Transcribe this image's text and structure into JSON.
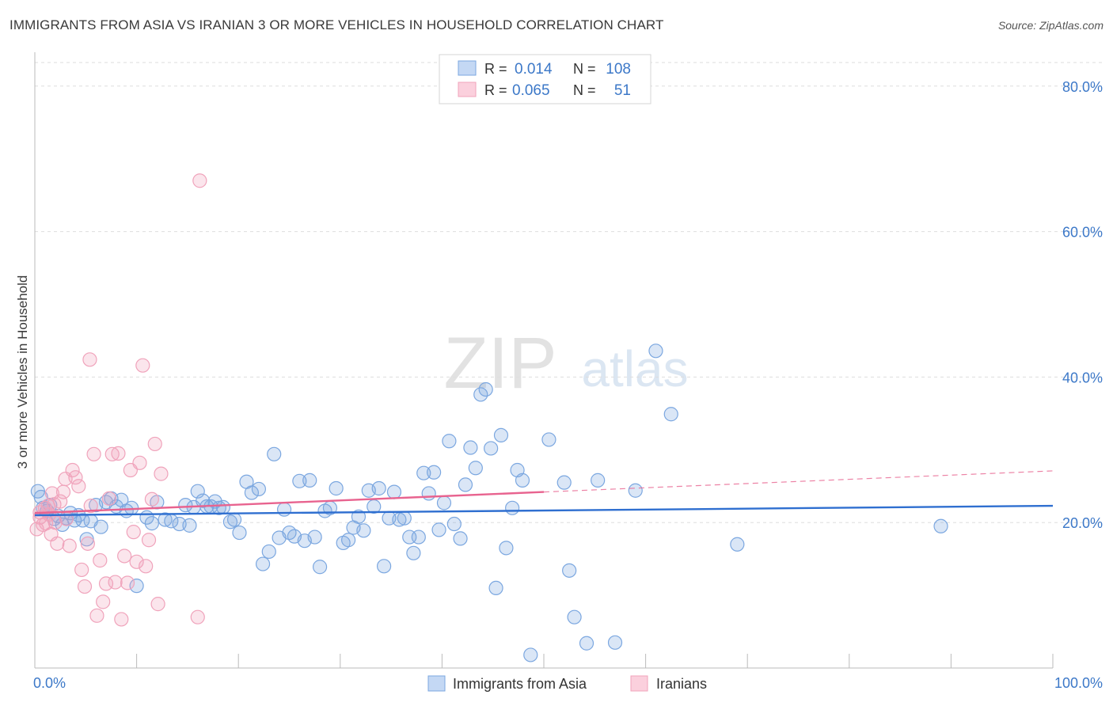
{
  "header": {
    "title": "IMMIGRANTS FROM ASIA VS IRANIAN 3 OR MORE VEHICLES IN HOUSEHOLD CORRELATION CHART",
    "source": "Source: ZipAtlas.com"
  },
  "watermark": {
    "zip": "ZIP",
    "atlas": "atlas"
  },
  "colors": {
    "blue": "#7ba7e0",
    "blue_line": "#2f6fd0",
    "pink": "#f0a3bb",
    "pink_line": "#e8638f",
    "tick_label": "#3c78c8",
    "grid": "#dddddd"
  },
  "legend_top": {
    "rows": [
      {
        "r_label": "R =",
        "r_value": "0.014",
        "n_label": "N =",
        "n_value": "108"
      },
      {
        "r_label": "R =",
        "r_value": "0.065",
        "n_label": "N =",
        "n_value": "51"
      }
    ]
  },
  "legend_bottom": {
    "items": [
      "Immigrants from Asia",
      "Iranians"
    ]
  },
  "chart_data": {
    "type": "scatter",
    "title": "IMMIGRANTS FROM ASIA VS IRANIAN 3 OR MORE VEHICLES IN HOUSEHOLD CORRELATION CHART",
    "xlabel": "",
    "ylabel": "3 or more Vehicles in Household",
    "xlim": [
      0,
      100
    ],
    "ylim": [
      0,
      84
    ],
    "x_tick_labels": [
      "0.0%",
      "100.0%"
    ],
    "y_ticks": [
      20,
      40,
      60,
      80
    ],
    "y_tick_labels": [
      "20.0%",
      "40.0%",
      "60.0%",
      "80.0%"
    ],
    "grid": true,
    "legend_position": "top-center",
    "series": [
      {
        "name": "Immigrants from Asia",
        "color": "#7ba7e0",
        "trend": {
          "x": [
            0,
            100
          ],
          "y": [
            21.0,
            22.3
          ],
          "style": "solid"
        },
        "points": [
          [
            0.3,
            24.3
          ],
          [
            0.6,
            23.5
          ],
          [
            0.8,
            22.0
          ],
          [
            1.2,
            21.6
          ],
          [
            1.5,
            22.4
          ],
          [
            1.9,
            20.5
          ],
          [
            2.3,
            20.9
          ],
          [
            2.7,
            19.7
          ],
          [
            3.1,
            20.6
          ],
          [
            3.5,
            21.3
          ],
          [
            3.9,
            20.3
          ],
          [
            4.3,
            21.0
          ],
          [
            4.7,
            20.3
          ],
          [
            5.1,
            17.7
          ],
          [
            5.5,
            20.2
          ],
          [
            6.0,
            22.4
          ],
          [
            6.5,
            19.4
          ],
          [
            7.0,
            22.8
          ],
          [
            7.5,
            23.3
          ],
          [
            8.0,
            22.2
          ],
          [
            8.5,
            23.1
          ],
          [
            9.0,
            21.6
          ],
          [
            9.5,
            22.0
          ],
          [
            10.0,
            11.3
          ],
          [
            11.0,
            20.7
          ],
          [
            11.5,
            19.9
          ],
          [
            12.0,
            22.8
          ],
          [
            12.8,
            20.4
          ],
          [
            13.4,
            20.2
          ],
          [
            14.2,
            19.8
          ],
          [
            14.8,
            22.4
          ],
          [
            15.2,
            19.6
          ],
          [
            15.6,
            22.1
          ],
          [
            16.0,
            24.3
          ],
          [
            16.5,
            23.0
          ],
          [
            16.9,
            22.2
          ],
          [
            17.3,
            22.2
          ],
          [
            17.7,
            22.9
          ],
          [
            18.1,
            22.0
          ],
          [
            18.5,
            22.1
          ],
          [
            19.2,
            20.1
          ],
          [
            19.6,
            20.4
          ],
          [
            20.1,
            18.6
          ],
          [
            20.8,
            25.6
          ],
          [
            21.3,
            24.1
          ],
          [
            22.0,
            24.6
          ],
          [
            22.4,
            14.3
          ],
          [
            23.0,
            16.0
          ],
          [
            23.5,
            29.4
          ],
          [
            24.0,
            17.9
          ],
          [
            24.5,
            21.8
          ],
          [
            25.0,
            18.6
          ],
          [
            25.5,
            18.1
          ],
          [
            26.0,
            25.7
          ],
          [
            26.5,
            17.5
          ],
          [
            27.0,
            25.8
          ],
          [
            27.5,
            18.0
          ],
          [
            28.0,
            13.9
          ],
          [
            28.5,
            21.6
          ],
          [
            29.0,
            22.0
          ],
          [
            29.6,
            24.7
          ],
          [
            30.3,
            17.2
          ],
          [
            30.8,
            17.6
          ],
          [
            31.3,
            19.3
          ],
          [
            31.8,
            20.8
          ],
          [
            32.3,
            18.9
          ],
          [
            32.8,
            24.4
          ],
          [
            33.3,
            22.2
          ],
          [
            33.8,
            24.7
          ],
          [
            34.3,
            14.0
          ],
          [
            34.8,
            20.6
          ],
          [
            35.3,
            24.2
          ],
          [
            35.8,
            20.4
          ],
          [
            36.3,
            20.6
          ],
          [
            36.8,
            18.0
          ],
          [
            37.2,
            15.8
          ],
          [
            37.7,
            18.0
          ],
          [
            38.2,
            26.8
          ],
          [
            38.7,
            24.0
          ],
          [
            39.2,
            26.9
          ],
          [
            39.7,
            19.0
          ],
          [
            40.2,
            22.7
          ],
          [
            40.7,
            31.2
          ],
          [
            41.2,
            19.8
          ],
          [
            41.8,
            17.8
          ],
          [
            42.3,
            25.2
          ],
          [
            42.8,
            30.3
          ],
          [
            43.3,
            27.5
          ],
          [
            43.8,
            37.6
          ],
          [
            44.3,
            38.3
          ],
          [
            44.8,
            30.2
          ],
          [
            45.3,
            11.0
          ],
          [
            45.8,
            32.0
          ],
          [
            46.3,
            16.5
          ],
          [
            46.9,
            22.0
          ],
          [
            47.4,
            27.2
          ],
          [
            47.9,
            25.8
          ],
          [
            48.7,
            1.8
          ],
          [
            50.5,
            31.4
          ],
          [
            52.0,
            25.5
          ],
          [
            52.5,
            13.4
          ],
          [
            53.0,
            7.0
          ],
          [
            54.2,
            3.4
          ],
          [
            55.3,
            25.8
          ],
          [
            57.0,
            3.5
          ],
          [
            59.0,
            24.4
          ],
          [
            61.0,
            43.6
          ],
          [
            69.0,
            17.0
          ],
          [
            89.0,
            19.5
          ],
          [
            62.5,
            34.9
          ]
        ]
      },
      {
        "name": "Iranians",
        "color": "#f0a3bb",
        "trend": {
          "x": [
            0,
            50
          ],
          "y": [
            21.3,
            24.2
          ],
          "style": "solid",
          "dashed_to": [
            100,
            27.1
          ]
        },
        "points": [
          [
            0.2,
            19.1
          ],
          [
            0.5,
            20.7
          ],
          [
            0.8,
            19.7
          ],
          [
            1.0,
            22.0
          ],
          [
            1.3,
            22.3
          ],
          [
            1.6,
            18.4
          ],
          [
            1.9,
            22.5
          ],
          [
            2.2,
            17.1
          ],
          [
            2.5,
            22.9
          ],
          [
            2.8,
            24.2
          ],
          [
            3.1,
            20.5
          ],
          [
            3.4,
            16.8
          ],
          [
            3.7,
            27.2
          ],
          [
            4.0,
            26.2
          ],
          [
            4.3,
            25.0
          ],
          [
            4.6,
            13.5
          ],
          [
            4.9,
            11.2
          ],
          [
            5.2,
            17.1
          ],
          [
            5.5,
            22.3
          ],
          [
            5.8,
            29.4
          ],
          [
            6.1,
            7.2
          ],
          [
            6.4,
            14.8
          ],
          [
            6.7,
            9.1
          ],
          [
            7.0,
            11.6
          ],
          [
            7.3,
            23.3
          ],
          [
            7.6,
            29.4
          ],
          [
            7.9,
            11.8
          ],
          [
            8.2,
            29.5
          ],
          [
            8.5,
            6.7
          ],
          [
            8.8,
            15.4
          ],
          [
            9.1,
            11.7
          ],
          [
            9.4,
            27.2
          ],
          [
            9.7,
            18.7
          ],
          [
            10.0,
            14.6
          ],
          [
            10.3,
            28.2
          ],
          [
            10.6,
            41.6
          ],
          [
            10.9,
            14.0
          ],
          [
            11.2,
            17.6
          ],
          [
            11.5,
            23.2
          ],
          [
            11.8,
            30.8
          ],
          [
            12.1,
            8.8
          ],
          [
            12.4,
            26.7
          ],
          [
            5.4,
            42.4
          ],
          [
            16.2,
            67.0
          ],
          [
            16.0,
            7.0
          ],
          [
            3.0,
            26.0
          ],
          [
            2.0,
            20.0
          ],
          [
            0.5,
            21.4
          ],
          [
            1.1,
            19.9
          ],
          [
            1.4,
            21.1
          ],
          [
            1.7,
            24.0
          ]
        ]
      }
    ]
  }
}
